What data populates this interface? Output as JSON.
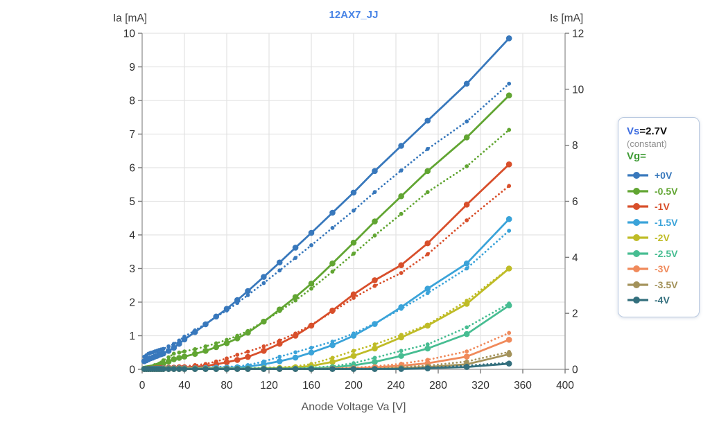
{
  "title": "12AX7_JJ",
  "axis_titles": {
    "left": "Ia [mA]",
    "right": "Is [mA]",
    "bottom": "Anode Voltage Va [V]"
  },
  "legend": {
    "param_name": "Vs",
    "param_value": "=2.7V",
    "note": "(constant)",
    "group_name": "Vg="
  },
  "colors": {
    "title": "#4a85e6",
    "vs": "#3b6be0",
    "vg": "#3f9b35",
    "note": "#8f8f8f",
    "grid": "#e4e4e4",
    "axis": "#a6a6a6",
    "tick": "#7a7a7a",
    "tick_label": "#2e2e2e"
  },
  "chart_data": {
    "type": "line",
    "title": "12AX7_JJ",
    "xlabel": "Anode Voltage Va [V]",
    "ylabel_left": "Ia [mA]",
    "ylabel_right": "Is [mA]",
    "x_range": [
      0,
      400
    ],
    "y_left_range": [
      0,
      10
    ],
    "y_right_range": [
      0,
      12
    ],
    "x_ticks": [
      0,
      40,
      80,
      120,
      160,
      200,
      240,
      280,
      320,
      360,
      400
    ],
    "y_left_ticks": [
      0,
      1,
      2,
      3,
      4,
      5,
      6,
      7,
      8,
      9,
      10
    ],
    "y_right_ticks": [
      0,
      2,
      4,
      6,
      8,
      10,
      12
    ],
    "grid": true,
    "legend_position": "right",
    "note": "solid curves = Ia on left axis; dotted curves = Is on right axis; Vs=2.7V constant",
    "x": [
      2,
      4,
      6,
      8,
      10,
      12,
      14,
      16,
      18,
      20,
      25,
      30,
      35,
      40,
      50,
      60,
      70,
      80,
      90,
      100,
      115,
      130,
      145,
      160,
      180,
      200,
      220,
      245,
      270,
      307,
      347
    ],
    "series": [
      {
        "label": "+0V",
        "color": "#3878bc",
        "ia": [
          0.24,
          0.27,
          0.3,
          0.33,
          0.35,
          0.38,
          0.4,
          0.43,
          0.45,
          0.47,
          0.55,
          0.64,
          0.76,
          0.89,
          1.11,
          1.34,
          1.57,
          1.8,
          2.06,
          2.33,
          2.75,
          3.18,
          3.62,
          4.06,
          4.66,
          5.26,
          5.9,
          6.65,
          7.4,
          8.5,
          9.85
        ],
        "is": [
          0.45,
          0.5,
          0.56,
          0.59,
          0.61,
          0.64,
          0.66,
          0.69,
          0.71,
          0.73,
          0.82,
          0.91,
          1.03,
          1.17,
          1.39,
          1.63,
          1.87,
          2.1,
          2.37,
          2.65,
          3.08,
          3.53,
          3.98,
          4.43,
          5.05,
          5.67,
          6.33,
          7.1,
          7.87,
          8.85,
          10.2
        ]
      },
      {
        "label": "-0.5V",
        "color": "#61a532",
        "ia": [
          0.02,
          0.03,
          0.04,
          0.05,
          0.06,
          0.08,
          0.09,
          0.11,
          0.13,
          0.17,
          0.23,
          0.3,
          0.34,
          0.38,
          0.46,
          0.55,
          0.66,
          0.78,
          0.92,
          1.09,
          1.42,
          1.78,
          2.15,
          2.55,
          3.15,
          3.77,
          4.4,
          5.15,
          5.9,
          6.9,
          8.15
        ],
        "is": [
          0.04,
          0.06,
          0.07,
          0.09,
          0.11,
          0.15,
          0.16,
          0.2,
          0.24,
          0.32,
          0.43,
          0.56,
          0.6,
          0.64,
          0.72,
          0.82,
          0.93,
          1.05,
          1.2,
          1.37,
          1.71,
          2.08,
          2.46,
          2.88,
          3.49,
          4.13,
          4.78,
          5.55,
          6.33,
          7.25,
          8.55
        ]
      },
      {
        "label": "-1V",
        "color": "#d84f2b",
        "ia": [
          0.01,
          0.01,
          0.02,
          0.02,
          0.02,
          0.03,
          0.03,
          0.03,
          0.04,
          0.04,
          0.05,
          0.05,
          0.06,
          0.06,
          0.08,
          0.1,
          0.15,
          0.21,
          0.28,
          0.37,
          0.55,
          0.76,
          1.0,
          1.3,
          1.75,
          2.23,
          2.65,
          3.1,
          3.75,
          4.9,
          6.1
        ],
        "is": [
          0.02,
          0.02,
          0.04,
          0.04,
          0.04,
          0.06,
          0.06,
          0.06,
          0.07,
          0.07,
          0.09,
          0.09,
          0.11,
          0.11,
          0.15,
          0.19,
          0.28,
          0.39,
          0.52,
          0.63,
          0.82,
          1.03,
          1.28,
          1.59,
          2.05,
          2.55,
          2.98,
          3.44,
          4.11,
          5.32,
          6.55
        ]
      },
      {
        "label": "-1.5V",
        "color": "#3aa3d9",
        "ia": [
          0.01,
          0.01,
          0.01,
          0.01,
          0.02,
          0.02,
          0.02,
          0.02,
          0.02,
          0.03,
          0.03,
          0.03,
          0.03,
          0.03,
          0.03,
          0.04,
          0.05,
          0.05,
          0.06,
          0.08,
          0.15,
          0.24,
          0.35,
          0.5,
          0.72,
          1.0,
          1.35,
          1.85,
          2.4,
          3.15,
          4.47
        ],
        "is": [
          0.02,
          0.02,
          0.02,
          0.02,
          0.04,
          0.04,
          0.04,
          0.04,
          0.04,
          0.06,
          0.06,
          0.06,
          0.06,
          0.06,
          0.06,
          0.07,
          0.09,
          0.09,
          0.11,
          0.15,
          0.28,
          0.45,
          0.61,
          0.77,
          0.99,
          1.28,
          1.64,
          2.16,
          2.72,
          3.6,
          4.95
        ]
      },
      {
        "label": "-2V",
        "color": "#bfbc27",
        "ia": [
          0.01,
          0.01,
          0.01,
          0.01,
          0.01,
          0.01,
          0.01,
          0.01,
          0.01,
          0.02,
          0.02,
          0.02,
          0.02,
          0.02,
          0.02,
          0.02,
          0.02,
          0.02,
          0.02,
          0.02,
          0.03,
          0.04,
          0.06,
          0.1,
          0.22,
          0.4,
          0.62,
          0.95,
          1.3,
          1.95,
          3.0
        ],
        "is": [
          0.02,
          0.02,
          0.02,
          0.02,
          0.02,
          0.02,
          0.02,
          0.02,
          0.02,
          0.04,
          0.04,
          0.04,
          0.04,
          0.04,
          0.04,
          0.04,
          0.04,
          0.04,
          0.04,
          0.04,
          0.06,
          0.07,
          0.11,
          0.19,
          0.41,
          0.66,
          0.89,
          1.23,
          1.59,
          2.45,
          3.6
        ]
      },
      {
        "label": "-2.5V",
        "color": "#47bd92",
        "ia": [
          0.01,
          0.01,
          0.01,
          0.01,
          0.01,
          0.01,
          0.01,
          0.01,
          0.01,
          0.01,
          0.01,
          0.01,
          0.01,
          0.01,
          0.01,
          0.01,
          0.01,
          0.01,
          0.02,
          0.02,
          0.02,
          0.02,
          0.02,
          0.03,
          0.06,
          0.12,
          0.22,
          0.4,
          0.62,
          1.05,
          1.9
        ],
        "is": [
          0.02,
          0.02,
          0.02,
          0.02,
          0.02,
          0.02,
          0.02,
          0.02,
          0.02,
          0.02,
          0.02,
          0.02,
          0.02,
          0.02,
          0.02,
          0.02,
          0.02,
          0.02,
          0.04,
          0.04,
          0.04,
          0.04,
          0.04,
          0.06,
          0.11,
          0.22,
          0.41,
          0.66,
          0.89,
          1.5,
          2.35
        ]
      },
      {
        "label": "-3V",
        "color": "#f08a5b",
        "ia": [
          0.01,
          0.01,
          0.01,
          0.01,
          0.01,
          0.01,
          0.01,
          0.01,
          0.01,
          0.01,
          0.01,
          0.01,
          0.01,
          0.01,
          0.01,
          0.01,
          0.01,
          0.01,
          0.01,
          0.01,
          0.01,
          0.01,
          0.01,
          0.01,
          0.02,
          0.03,
          0.06,
          0.11,
          0.18,
          0.38,
          0.88
        ],
        "is": [
          0.02,
          0.02,
          0.02,
          0.02,
          0.02,
          0.02,
          0.02,
          0.02,
          0.02,
          0.02,
          0.02,
          0.02,
          0.02,
          0.02,
          0.02,
          0.02,
          0.02,
          0.02,
          0.02,
          0.02,
          0.02,
          0.02,
          0.02,
          0.02,
          0.04,
          0.06,
          0.11,
          0.2,
          0.34,
          0.64,
          1.3
        ]
      },
      {
        "label": "-3.5V",
        "color": "#a3925a",
        "ia": [
          0.01,
          0.01,
          0.01,
          0.01,
          0.01,
          0.01,
          0.01,
          0.01,
          0.01,
          0.01,
          0.01,
          0.01,
          0.01,
          0.01,
          0.01,
          0.01,
          0.01,
          0.01,
          0.01,
          0.01,
          0.01,
          0.01,
          0.01,
          0.01,
          0.01,
          0.01,
          0.01,
          0.04,
          0.07,
          0.15,
          0.45
        ],
        "is": [
          0.02,
          0.02,
          0.02,
          0.02,
          0.02,
          0.02,
          0.02,
          0.02,
          0.02,
          0.02,
          0.02,
          0.02,
          0.02,
          0.02,
          0.02,
          0.02,
          0.02,
          0.02,
          0.02,
          0.02,
          0.02,
          0.02,
          0.02,
          0.02,
          0.02,
          0.02,
          0.02,
          0.08,
          0.13,
          0.28,
          0.62
        ]
      },
      {
        "label": "-4V",
        "color": "#336f7d",
        "ia": [
          0.01,
          0.01,
          0.01,
          0.01,
          0.01,
          0.01,
          0.01,
          0.01,
          0.01,
          0.01,
          0.01,
          0.01,
          0.01,
          0.01,
          0.01,
          0.01,
          0.01,
          0.01,
          0.01,
          0.01,
          0.01,
          0.01,
          0.01,
          0.01,
          0.01,
          0.01,
          0.01,
          0.01,
          0.03,
          0.07,
          0.17
        ],
        "is": [
          0.02,
          0.02,
          0.02,
          0.02,
          0.02,
          0.02,
          0.02,
          0.02,
          0.02,
          0.02,
          0.02,
          0.02,
          0.02,
          0.02,
          0.02,
          0.02,
          0.02,
          0.02,
          0.02,
          0.02,
          0.02,
          0.02,
          0.02,
          0.02,
          0.02,
          0.02,
          0.02,
          0.02,
          0.06,
          0.13,
          0.24
        ]
      }
    ]
  }
}
